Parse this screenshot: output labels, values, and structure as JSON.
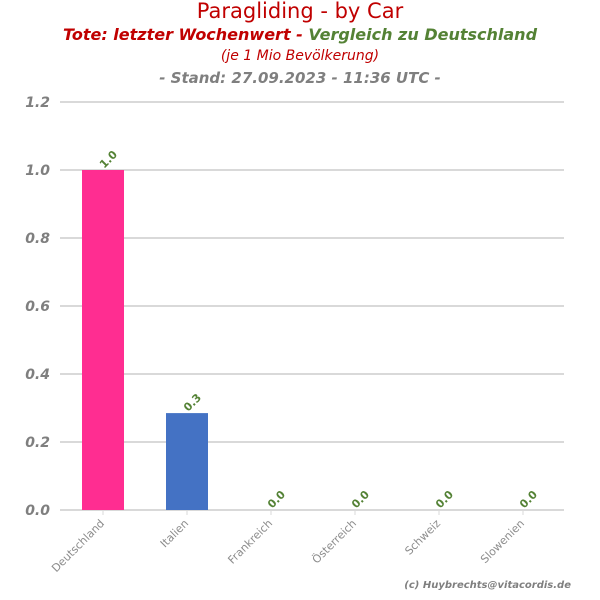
{
  "chart_data": {
    "type": "bar",
    "title": "Paragliding - by Car",
    "subtitle_part1": "Tote: letzter Wochenwert - ",
    "subtitle_part2": "Vergleich zu Deutschland",
    "subtitle2": "(je 1 Mio Bevölkerung)",
    "subtitle3": "- Stand: 27.09.2023 - 11:36 UTC -",
    "categories": [
      "Deutschland",
      "Italien",
      "Frankreich",
      "Österreich",
      "Schweiz",
      "Slowenien"
    ],
    "values": [
      1.0,
      0.285,
      0,
      0,
      0,
      0
    ],
    "data_labels": [
      "1.0",
      "0.3",
      "0.0",
      "0.0",
      "0.0",
      "0.0"
    ],
    "bar_colors": [
      "#ff2d91",
      "#4472c4",
      "#4472c4",
      "#4472c4",
      "#4472c4",
      "#4472c4"
    ],
    "ylim": [
      0,
      1.2
    ],
    "yticks": [
      "0.0",
      "0.2",
      "0.4",
      "0.6",
      "0.8",
      "1.0",
      "1.2"
    ],
    "xlabel": "",
    "ylabel": "",
    "grid": true,
    "colors": {
      "title": "#c00000",
      "green": "#548235",
      "gray": "#7f7f7f"
    },
    "credit": "(c) Huybrechts@vitacordis.de"
  }
}
